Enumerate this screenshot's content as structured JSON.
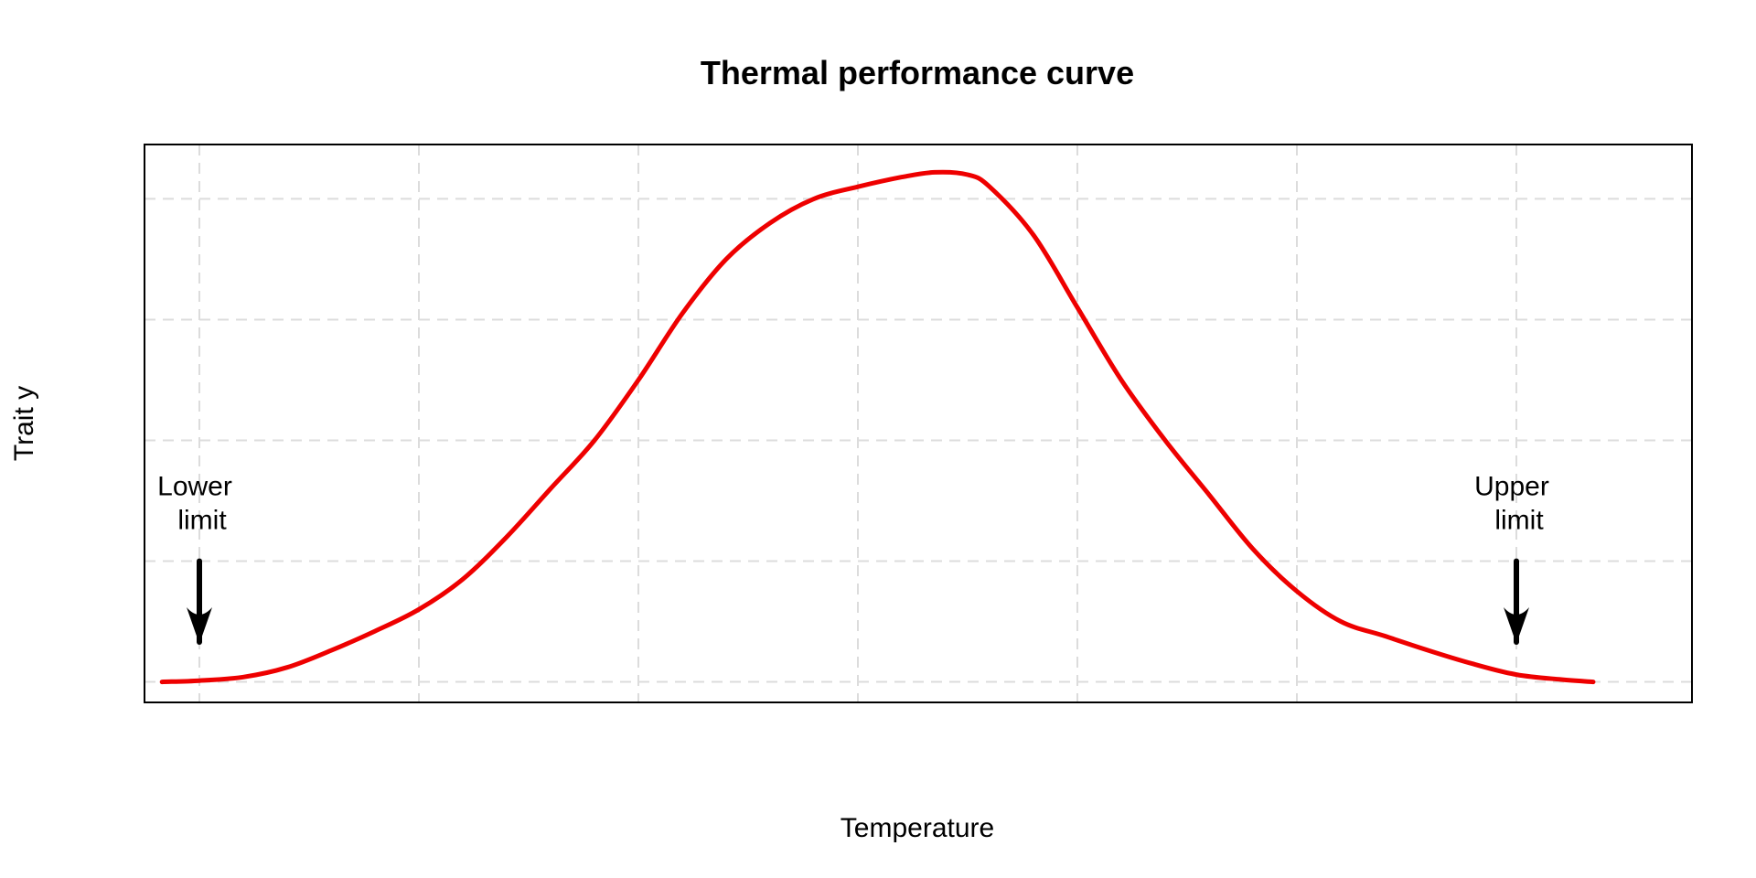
{
  "chart_data": {
    "type": "line",
    "title": "Thermal performance curve",
    "xlabel": "Temperature",
    "ylabel": "Trait y",
    "xlim": [
      -0.25,
      6.8
    ],
    "ylim": [
      -0.17,
      4.45
    ],
    "x_gridlines": [
      0,
      1,
      2,
      3,
      4,
      5,
      6
    ],
    "y_gridlines": [
      0,
      1,
      2,
      3,
      4
    ],
    "grid": "dashed",
    "legend": "none",
    "tick_labels_shown": false,
    "series": [
      {
        "color": "#ee0000",
        "x": [
          -0.17,
          0.0,
          0.2,
          0.4,
          0.6,
          0.8,
          1.0,
          1.2,
          1.4,
          1.6,
          1.8,
          2.0,
          2.2,
          2.4,
          2.6,
          2.8,
          3.0,
          3.2,
          3.35,
          3.5,
          3.6,
          3.8,
          4.0,
          4.2,
          4.4,
          4.6,
          4.8,
          5.0,
          5.2,
          5.4,
          5.6,
          5.8,
          6.0,
          6.2,
          6.35
        ],
        "y": [
          0.0,
          0.01,
          0.04,
          0.12,
          0.26,
          0.42,
          0.6,
          0.85,
          1.2,
          1.6,
          2.0,
          2.5,
          3.05,
          3.5,
          3.8,
          4.0,
          4.1,
          4.18,
          4.22,
          4.2,
          4.1,
          3.7,
          3.1,
          2.5,
          2.0,
          1.55,
          1.1,
          0.75,
          0.5,
          0.38,
          0.26,
          0.15,
          0.06,
          0.02,
          0.0
        ]
      }
    ],
    "annotations": [
      {
        "text_line1": "Lower",
        "text_line2": "limit",
        "x": 0,
        "arrow_y_from": 1.0,
        "arrow_y_to": 0.33
      },
      {
        "text_line1": "Upper",
        "text_line2": "limit",
        "x": 6,
        "arrow_y_from": 1.0,
        "arrow_y_to": 0.33
      }
    ]
  }
}
